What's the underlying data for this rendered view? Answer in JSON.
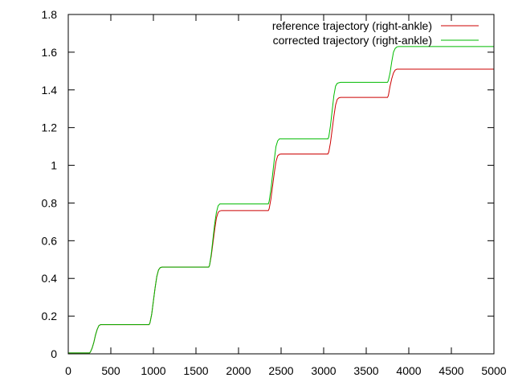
{
  "chart_data": {
    "type": "line",
    "title": "",
    "xlabel": "",
    "ylabel": "",
    "xlim": [
      0,
      5000
    ],
    "ylim": [
      0,
      1.8
    ],
    "x_ticks": [
      0,
      500,
      1000,
      1500,
      2000,
      2500,
      3000,
      3500,
      4000,
      4500,
      5000
    ],
    "x_tick_labels": [
      "0",
      "500",
      "1000",
      "1500",
      "2000",
      "2500",
      "3000",
      "3500",
      "4000",
      "4500",
      "5000"
    ],
    "y_ticks": [
      0,
      0.2,
      0.4,
      0.6,
      0.8,
      1.0,
      1.2,
      1.4,
      1.6,
      1.8
    ],
    "y_tick_labels": [
      "0",
      "0.2",
      "0.4",
      "0.6",
      "0.8",
      "1",
      "1.2",
      "1.4",
      "1.6",
      "1.8"
    ],
    "grid": false,
    "legend_position": "top-right",
    "series": [
      {
        "name": "reference trajectory (right-ankle)",
        "color": "#cc0000",
        "x": [
          0,
          250,
          260,
          280,
          300,
          320,
          340,
          360,
          380,
          400,
          950,
          960,
          980,
          1000,
          1020,
          1040,
          1060,
          1080,
          1100,
          1650,
          1660,
          1680,
          1700,
          1720,
          1740,
          1760,
          1780,
          1800,
          2350,
          2360,
          2380,
          2400,
          2420,
          2440,
          2460,
          2480,
          2500,
          3050,
          3060,
          3080,
          3100,
          3120,
          3140,
          3160,
          3180,
          3200,
          3750,
          3760,
          3780,
          3800,
          3820,
          3840,
          3860,
          3880,
          3900,
          5000
        ],
        "y": [
          0.005,
          0.005,
          0.01,
          0.03,
          0.06,
          0.1,
          0.13,
          0.15,
          0.155,
          0.155,
          0.155,
          0.165,
          0.21,
          0.28,
          0.35,
          0.41,
          0.445,
          0.457,
          0.46,
          0.46,
          0.47,
          0.52,
          0.59,
          0.66,
          0.72,
          0.75,
          0.758,
          0.76,
          0.76,
          0.77,
          0.82,
          0.89,
          0.96,
          1.02,
          1.05,
          1.058,
          1.06,
          1.06,
          1.07,
          1.12,
          1.19,
          1.26,
          1.32,
          1.35,
          1.358,
          1.36,
          1.36,
          1.37,
          1.42,
          1.46,
          1.49,
          1.505,
          1.51,
          1.51,
          1.51,
          1.51
        ]
      },
      {
        "name": "corrected trajectory (right-ankle)",
        "color": "#00bb00",
        "x": [
          0,
          250,
          260,
          280,
          300,
          320,
          340,
          360,
          380,
          400,
          950,
          960,
          980,
          1000,
          1020,
          1040,
          1060,
          1080,
          1100,
          1650,
          1660,
          1680,
          1700,
          1720,
          1740,
          1760,
          1780,
          1800,
          2350,
          2360,
          2380,
          2400,
          2420,
          2440,
          2460,
          2480,
          2500,
          3050,
          3060,
          3080,
          3100,
          3120,
          3140,
          3160,
          3180,
          3200,
          3750,
          3760,
          3780,
          3800,
          3820,
          3840,
          3860,
          3880,
          3900,
          5000
        ],
        "y": [
          0.005,
          0.005,
          0.01,
          0.03,
          0.06,
          0.1,
          0.13,
          0.15,
          0.155,
          0.155,
          0.155,
          0.165,
          0.21,
          0.28,
          0.35,
          0.41,
          0.445,
          0.457,
          0.46,
          0.46,
          0.47,
          0.53,
          0.61,
          0.69,
          0.75,
          0.785,
          0.795,
          0.795,
          0.795,
          0.81,
          0.87,
          0.95,
          1.03,
          1.1,
          1.13,
          1.14,
          1.14,
          1.14,
          1.15,
          1.21,
          1.29,
          1.37,
          1.42,
          1.435,
          1.438,
          1.44,
          1.44,
          1.45,
          1.49,
          1.55,
          1.6,
          1.62,
          1.628,
          1.63,
          1.63,
          1.63
        ]
      }
    ]
  }
}
